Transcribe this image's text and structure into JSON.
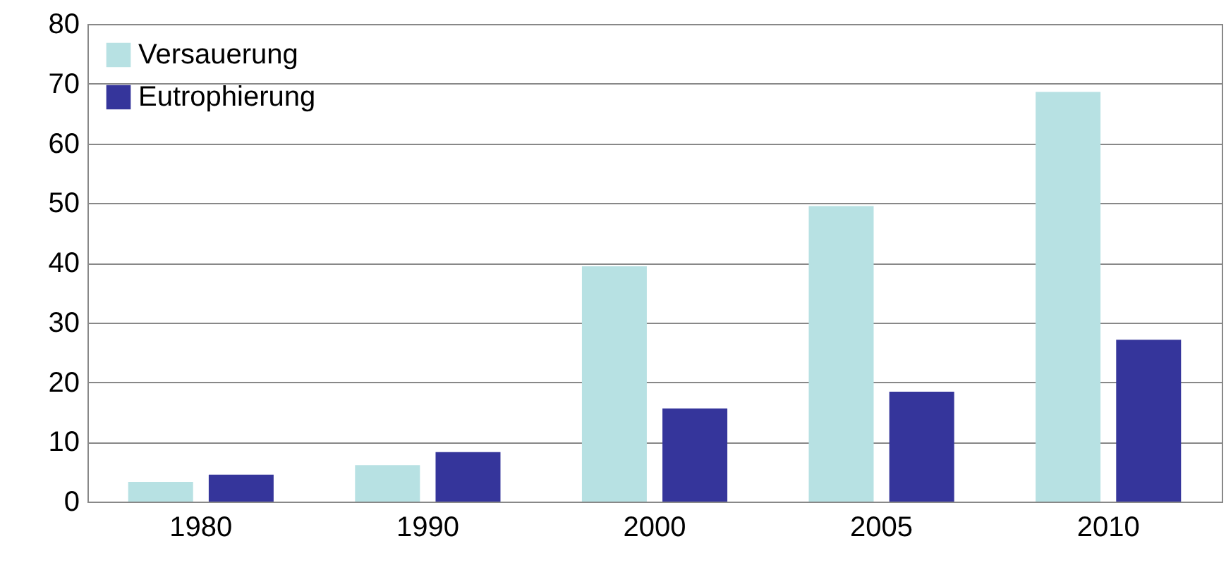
{
  "chart_data": {
    "type": "bar",
    "categories": [
      "1980",
      "1990",
      "2000",
      "2005",
      "2010"
    ],
    "series": [
      {
        "name": "Versauerung",
        "color": "#b7e1e3",
        "values": [
          3.3,
          6.1,
          39.4,
          49.5,
          68.6
        ]
      },
      {
        "name": "Eutrophierung",
        "color": "#35359b",
        "values": [
          4.5,
          8.3,
          15.6,
          18.4,
          27.1
        ]
      }
    ],
    "ylim": [
      0,
      80
    ],
    "yticks": [
      0,
      10,
      20,
      30,
      40,
      50,
      60,
      70,
      80
    ],
    "grid": "y",
    "legend": "top left"
  }
}
